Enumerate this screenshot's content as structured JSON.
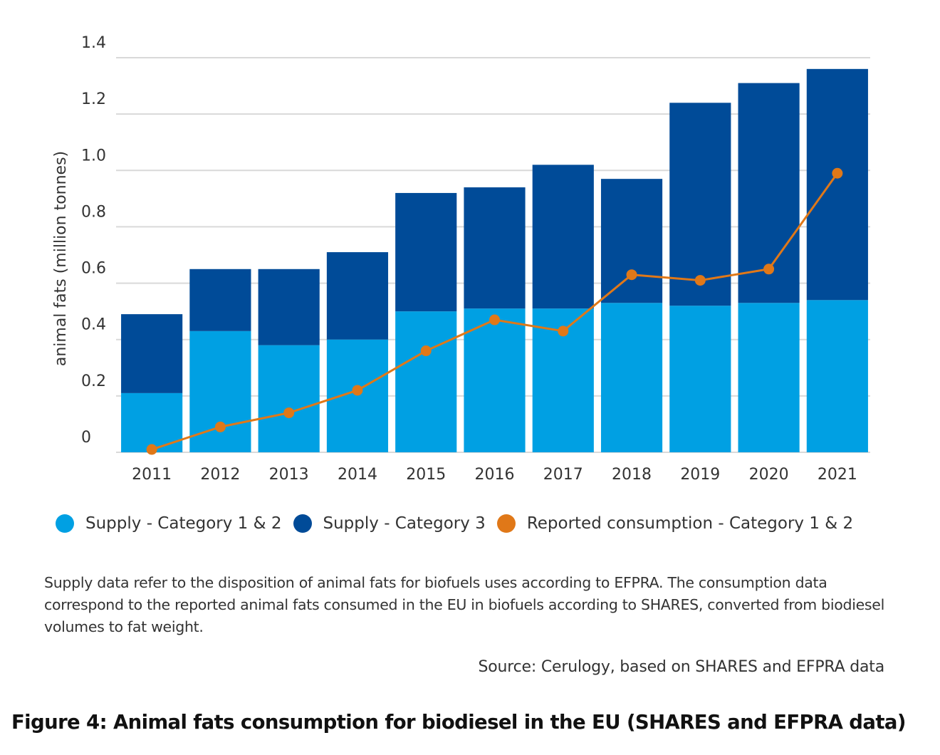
{
  "chart_data": {
    "type": "bar",
    "stacked": true,
    "title": "",
    "xlabel": "",
    "ylabel": "animal fats (million tonnes)",
    "ylim": [
      0,
      1.4
    ],
    "yticks": [
      0,
      0.2,
      0.4,
      0.6,
      0.8,
      1.0,
      1.2,
      1.4
    ],
    "ytick_labels": [
      "0",
      "0.2",
      "0.4",
      "0.6",
      "0.8",
      "1.0",
      "1.2",
      "1.4"
    ],
    "grid": true,
    "legend_position": "bottom",
    "categories": [
      "2011",
      "2012",
      "2013",
      "2014",
      "2015",
      "2016",
      "2017",
      "2018",
      "2019",
      "2020",
      "2021"
    ],
    "series": [
      {
        "name": "Supply - Category 1 & 2",
        "type": "bar",
        "color": "#00a0e3",
        "values": [
          0.21,
          0.43,
          0.38,
          0.4,
          0.5,
          0.51,
          0.51,
          0.53,
          0.52,
          0.53,
          0.54
        ]
      },
      {
        "name": "Supply - Category 3",
        "type": "bar",
        "color": "#004b98",
        "values": [
          0.28,
          0.22,
          0.27,
          0.31,
          0.42,
          0.43,
          0.51,
          0.44,
          0.72,
          0.78,
          0.82
        ]
      },
      {
        "name": "Reported consumption - Category 1 & 2",
        "type": "line",
        "color": "#e07818",
        "values": [
          0.01,
          0.09,
          0.14,
          0.22,
          0.36,
          0.47,
          0.43,
          0.63,
          0.61,
          0.65,
          0.99
        ]
      }
    ]
  },
  "legend": {
    "items": [
      {
        "label": "Supply - Category 1 & 2",
        "color": "#00a0e3"
      },
      {
        "label": "Supply - Category 3",
        "color": "#004b98"
      },
      {
        "label": "Reported consumption - Category 1 & 2",
        "color": "#e07818"
      }
    ]
  },
  "note": "Supply data refer to the disposition of animal fats for biofuels uses according to EFPRA. The consumption data correspond to the reported animal fats consumed in the EU in biofuels according to SHARES, converted from biodiesel volumes to fat weight.",
  "source": "Source: Cerulogy, based on SHARES and EFPRA data",
  "caption": "Figure 4: Animal fats consumption for biodiesel in the EU (SHARES and EFPRA data)"
}
